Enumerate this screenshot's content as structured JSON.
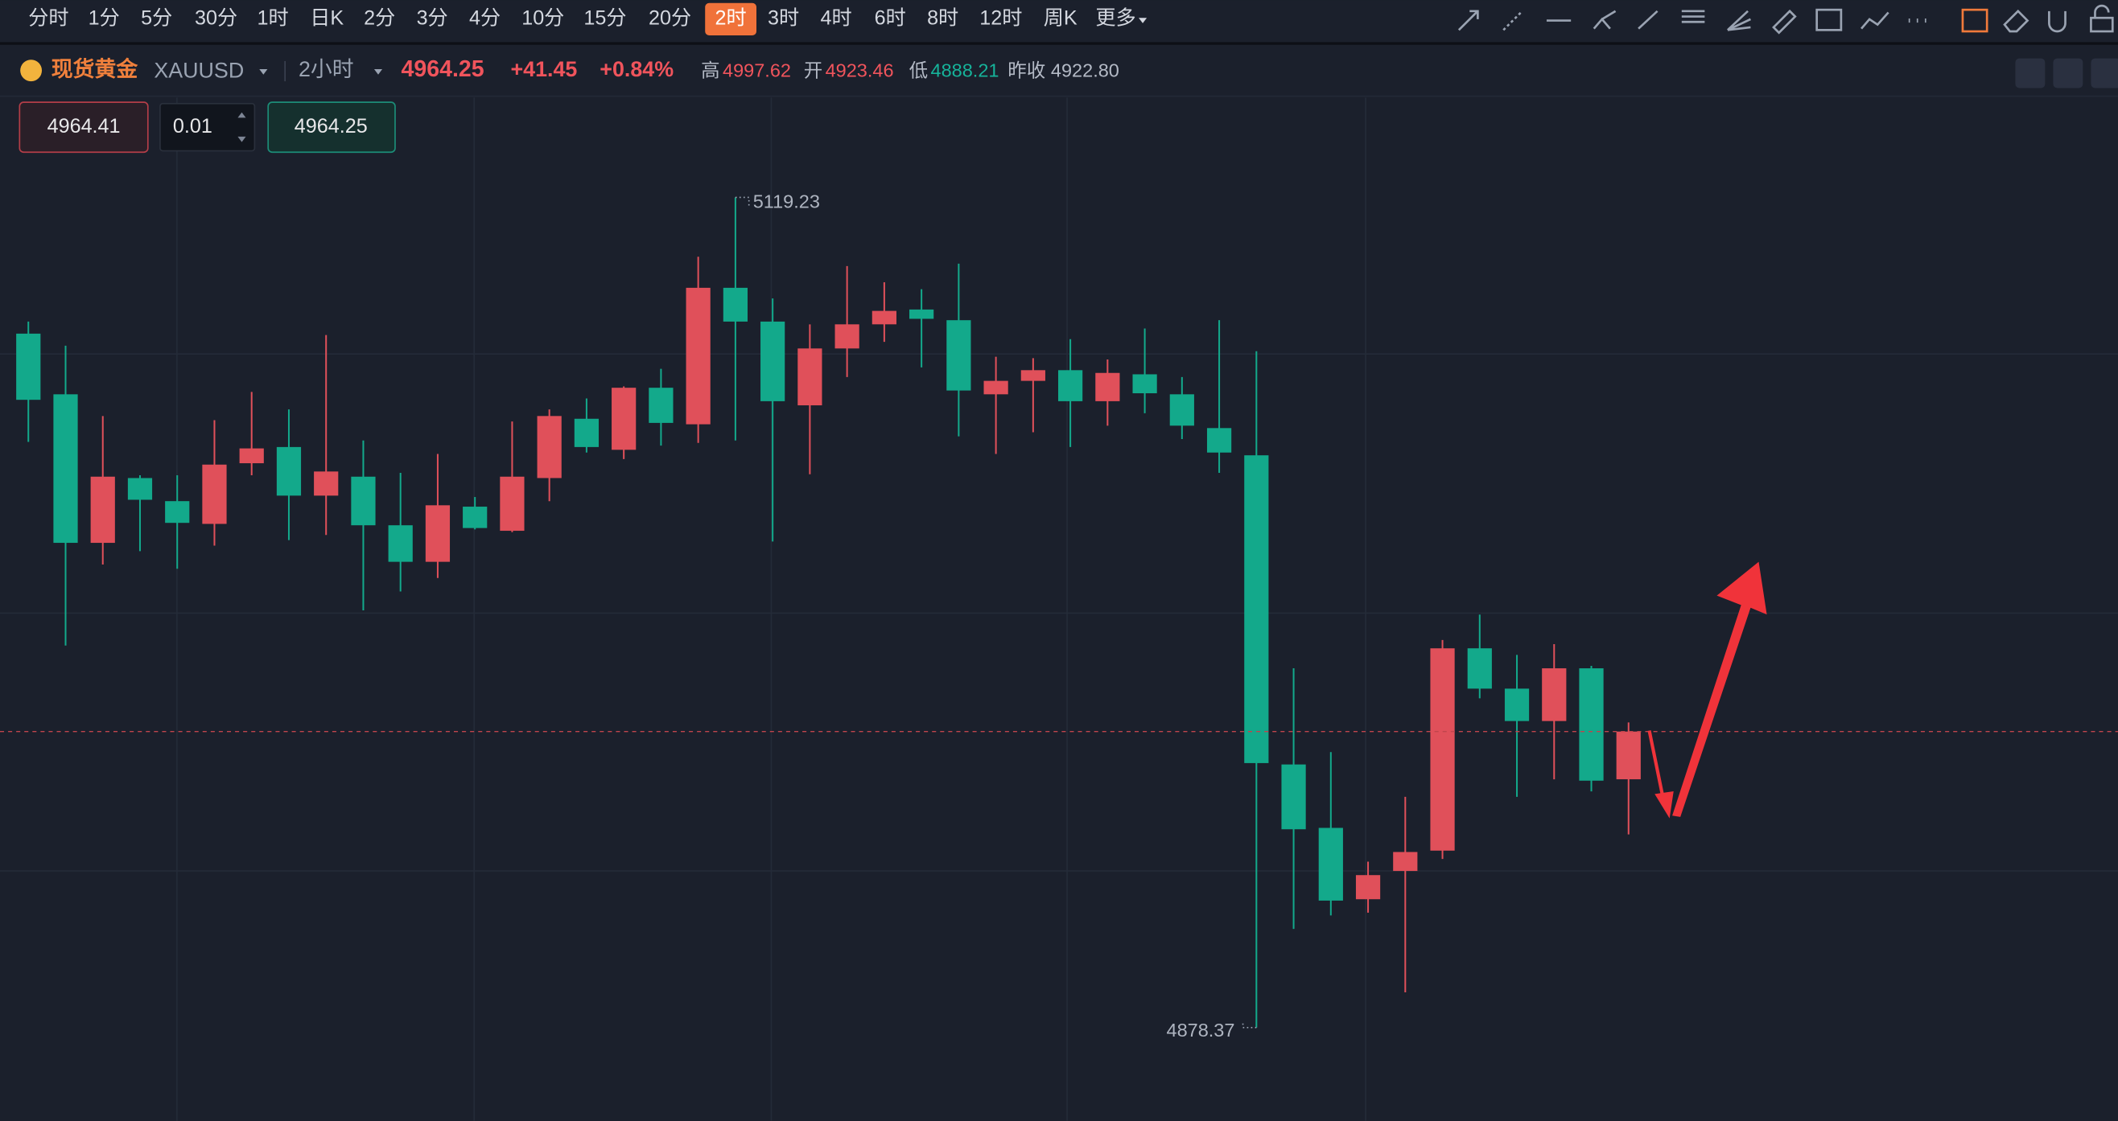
{
  "toolbar": {
    "timeframes": [
      "分时",
      "1分",
      "5分",
      "30分",
      "1时",
      "日K",
      "2分",
      "3分",
      "4分",
      "10分",
      "15分",
      "20分",
      "2时",
      "3时",
      "4时",
      "6时",
      "8时",
      "12时",
      "周K",
      "更多"
    ],
    "active_index": 12
  },
  "symbol": {
    "name": "现货黄金",
    "code": "XAUUSD",
    "period": "2小时",
    "price": "4964.25",
    "change": "+41.45",
    "change_pct": "+0.84%",
    "high_label": "高",
    "high": "4997.62",
    "open_label": "开",
    "open": "4923.46",
    "low_label": "低",
    "low": "4888.21",
    "prev_label": "昨收",
    "prev_close": "4922.80"
  },
  "order": {
    "sell": "4964.41",
    "lot": "0.01",
    "buy": "4964.25"
  },
  "chart_data": {
    "type": "candlestick",
    "up_color": "#e0505a",
    "down_color": "#13a98b",
    "open": [
      5079.7,
      5062.1,
      5019.0,
      5037.8,
      5031.1,
      5024.5,
      5042.1,
      5046.8,
      5032.7,
      5038.2,
      5024.1,
      5013.5,
      5029.5,
      5022.5,
      5037.8,
      5055.0,
      5046.0,
      5064.0,
      5053.4,
      5093.0,
      5083.2,
      5058.9,
      5075.4,
      5082.4,
      5086.7,
      5083.6,
      5062.1,
      5066.0,
      5069.1,
      5060.1,
      5067.9,
      5062.1,
      5052.3,
      5044.4,
      4954.7,
      4936.3,
      4915.6,
      4923.8,
      4929.7,
      4988.4,
      4976.7,
      4967.3,
      4982.6,
      4950.4
    ],
    "high": [
      5083.2,
      5076.2,
      5055.8,
      5038.6,
      5038.6,
      5054.6,
      5062.8,
      5057.7,
      5079.3,
      5048.7,
      5039.3,
      5044.8,
      5032.3,
      5054.2,
      5057.7,
      5060.9,
      5064.4,
      5069.5,
      5102.0,
      5119.23,
      5089.9,
      5082.4,
      5099.3,
      5094.6,
      5092.6,
      5100.0,
      5073.0,
      5072.6,
      5078.1,
      5072.2,
      5081.2,
      5067.1,
      5083.6,
      5074.6,
      4982.6,
      4958.3,
      4926.5,
      4945.3,
      4990.8,
      4998.2,
      4986.5,
      4989.6,
      4983.3,
      4966.9
    ],
    "low": [
      5048.3,
      4989.2,
      5012.7,
      5016.6,
      5011.5,
      5018.2,
      5038.6,
      5019.8,
      5021.3,
      4999.4,
      5004.9,
      5008.8,
      5022.9,
      5022.1,
      5031.1,
      5045.2,
      5043.3,
      5047.2,
      5048.0,
      5048.7,
      5019.4,
      5038.9,
      5067.1,
      5077.3,
      5069.9,
      5049.9,
      5044.8,
      5051.1,
      5046.8,
      5053.0,
      5056.6,
      5049.1,
      5039.3,
      4878.37,
      4907.0,
      4910.9,
      4911.7,
      4888.6,
      4927.3,
      4973.9,
      4945.3,
      4950.4,
      4946.9,
      4934.4
    ],
    "close": [
      5060.5,
      5019.0,
      5038.2,
      5031.5,
      5024.8,
      5041.7,
      5046.4,
      5032.7,
      5039.7,
      5024.1,
      5013.5,
      5029.9,
      5023.3,
      5038.2,
      5055.8,
      5046.8,
      5064.0,
      5053.8,
      5093.0,
      5083.2,
      5060.1,
      5075.4,
      5082.4,
      5086.3,
      5084.0,
      5063.2,
      5066.0,
      5069.1,
      5060.1,
      5068.3,
      5062.4,
      5053.0,
      5045.2,
      4955.1,
      4935.9,
      4915.2,
      4922.6,
      4929.3,
      4988.4,
      4976.7,
      4967.3,
      4982.6,
      4950.0,
      4964.25
    ]
  }
}
